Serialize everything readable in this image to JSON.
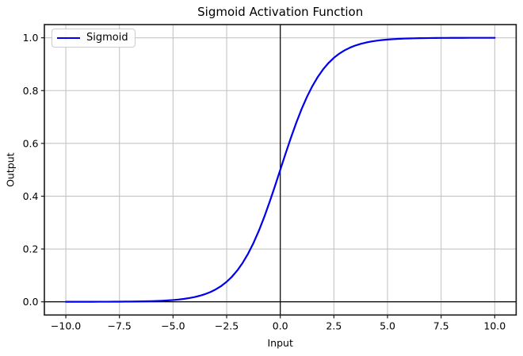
{
  "chart_data": {
    "type": "line",
    "title": "Sigmoid Activation Function",
    "xlabel": "Input",
    "ylabel": "Output",
    "xlim": [
      -11,
      11
    ],
    "ylim": [
      -0.05,
      1.05
    ],
    "grid": true,
    "x_ticks": [
      -10,
      -7.5,
      -5,
      -2.5,
      0,
      2.5,
      5,
      7.5,
      10
    ],
    "x_tick_labels": [
      "−10.0",
      "−7.5",
      "−5.0",
      "−2.5",
      "0.0",
      "2.5",
      "5.0",
      "7.5",
      "10.0"
    ],
    "y_ticks": [
      0,
      0.2,
      0.4,
      0.6,
      0.8,
      1.0
    ],
    "y_tick_labels": [
      "0.0",
      "0.2",
      "0.4",
      "0.6",
      "0.8",
      "1.0"
    ],
    "reference_lines": {
      "vertical_x": 0,
      "horizontal_y": 0,
      "color": "#000000"
    },
    "legend": {
      "position": "upper-left",
      "entries": [
        {
          "label": "Sigmoid",
          "color": "#0000ee"
        }
      ]
    },
    "series": [
      {
        "name": "Sigmoid",
        "color": "#0000ee",
        "x": [
          -10,
          -9.75,
          -9.5,
          -9.25,
          -9,
          -8.75,
          -8.5,
          -8.25,
          -8,
          -7.75,
          -7.5,
          -7.25,
          -7,
          -6.75,
          -6.5,
          -6.25,
          -6,
          -5.75,
          -5.5,
          -5.25,
          -5,
          -4.75,
          -4.5,
          -4.25,
          -4,
          -3.75,
          -3.5,
          -3.25,
          -3,
          -2.75,
          -2.5,
          -2.25,
          -2,
          -1.75,
          -1.5,
          -1.25,
          -1,
          -0.75,
          -0.5,
          -0.25,
          0,
          0.25,
          0.5,
          0.75,
          1,
          1.25,
          1.5,
          1.75,
          2,
          2.25,
          2.5,
          2.75,
          3,
          3.25,
          3.5,
          3.75,
          4,
          4.25,
          4.5,
          4.75,
          5,
          5.25,
          5.5,
          5.75,
          6,
          6.25,
          6.5,
          6.75,
          7,
          7.25,
          7.5,
          7.75,
          8,
          8.25,
          8.5,
          8.75,
          9,
          9.25,
          9.5,
          9.75,
          10
        ],
        "y": [
          5e-05,
          6e-05,
          7e-05,
          0.0001,
          0.00012,
          0.00016,
          0.0002,
          0.00026,
          0.00034,
          0.00043,
          0.00055,
          0.00071,
          0.00091,
          0.00117,
          0.0015,
          0.00193,
          0.00247,
          0.00317,
          0.00407,
          0.00522,
          0.00669,
          0.00858,
          0.01099,
          0.01406,
          0.01799,
          0.02297,
          0.02931,
          0.03732,
          0.04743,
          0.06009,
          0.07586,
          0.09535,
          0.1192,
          0.14805,
          0.18243,
          0.2227,
          0.26894,
          0.32082,
          0.37754,
          0.43782,
          0.5,
          0.56218,
          0.62246,
          0.67918,
          0.73106,
          0.7773,
          0.81757,
          0.85195,
          0.8808,
          0.90465,
          0.92414,
          0.93991,
          0.95257,
          0.96268,
          0.97069,
          0.97703,
          0.98201,
          0.98594,
          0.98901,
          0.99142,
          0.99331,
          0.99478,
          0.99593,
          0.99683,
          0.99753,
          0.99807,
          0.9985,
          0.99883,
          0.99909,
          0.99929,
          0.99945,
          0.99957,
          0.99966,
          0.99974,
          0.9998,
          0.99984,
          0.99988,
          0.9999,
          0.99993,
          0.99994,
          0.99995
        ]
      }
    ]
  },
  "colors": {
    "line": "#0000ee",
    "grid": "#c4c4c4",
    "spine": "#1a1a1a",
    "reference_line": "#000000",
    "background": "#ffffff",
    "legend_border": "#cccccc"
  }
}
